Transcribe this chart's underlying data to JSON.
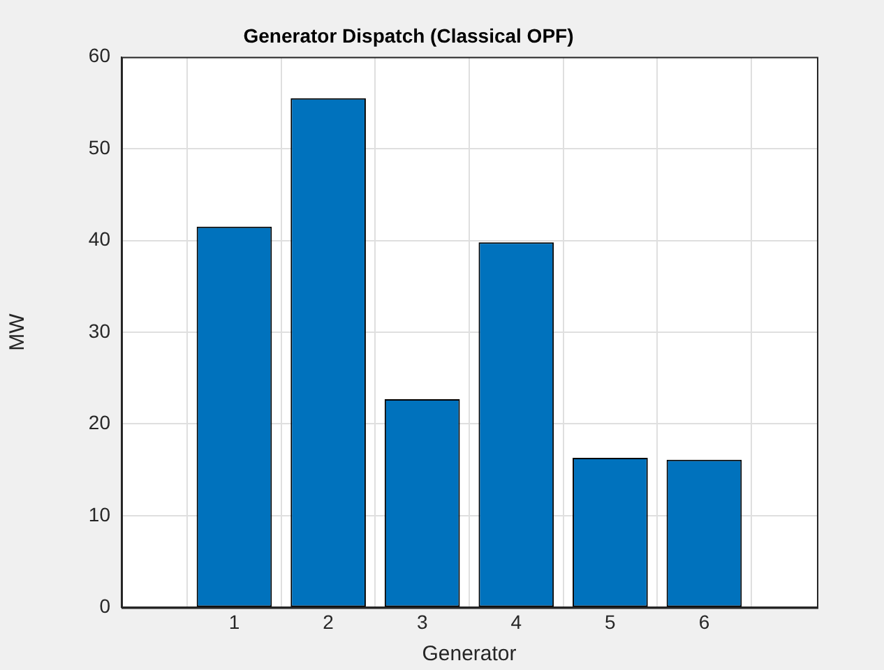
{
  "chart_data": {
    "type": "bar",
    "title": "Generator Dispatch (Classical OPF)",
    "xlabel": "Generator",
    "ylabel": "MW",
    "x": [
      1,
      2,
      3,
      4,
      5,
      6
    ],
    "values": [
      41.5,
      55.5,
      22.7,
      39.8,
      16.3,
      16.1
    ],
    "color": "#0072bd",
    "xlim": [
      -0.2,
      7.2
    ],
    "xticks": [
      1,
      2,
      3,
      4,
      5,
      6
    ],
    "ylim": [
      0,
      60
    ],
    "yticks": [
      0,
      10,
      20,
      30,
      40,
      50,
      60
    ],
    "grid": true
  }
}
